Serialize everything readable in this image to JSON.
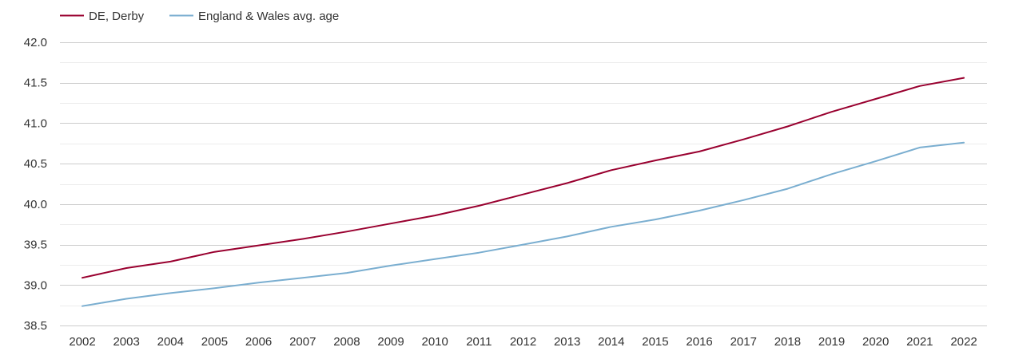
{
  "chart_data": {
    "type": "line",
    "title": "",
    "xlabel": "",
    "ylabel": "",
    "x": [
      "2002",
      "2003",
      "2004",
      "2005",
      "2006",
      "2007",
      "2008",
      "2009",
      "2010",
      "2011",
      "2012",
      "2013",
      "2014",
      "2015",
      "2016",
      "2017",
      "2018",
      "2019",
      "2020",
      "2021",
      "2022"
    ],
    "ylim": [
      38.5,
      42.0
    ],
    "yticks": [
      "38.5",
      "39.0",
      "39.5",
      "40.0",
      "40.5",
      "41.0",
      "41.5",
      "42.0"
    ],
    "grid": true,
    "legend_position": "top-left",
    "series": [
      {
        "name": "DE, Derby",
        "color": "#99002f",
        "values": [
          39.09,
          39.21,
          39.29,
          39.41,
          39.49,
          39.57,
          39.66,
          39.76,
          39.86,
          39.98,
          40.12,
          40.26,
          40.42,
          40.54,
          40.65,
          40.8,
          40.96,
          41.14,
          41.3,
          41.46,
          41.56
        ]
      },
      {
        "name": "England & Wales avg. age",
        "color": "#7aaed0",
        "values": [
          38.74,
          38.83,
          38.9,
          38.96,
          39.03,
          39.09,
          39.15,
          39.24,
          39.32,
          39.4,
          39.5,
          39.6,
          39.72,
          39.81,
          39.92,
          40.05,
          40.19,
          40.37,
          40.53,
          40.7,
          40.76
        ]
      }
    ]
  }
}
